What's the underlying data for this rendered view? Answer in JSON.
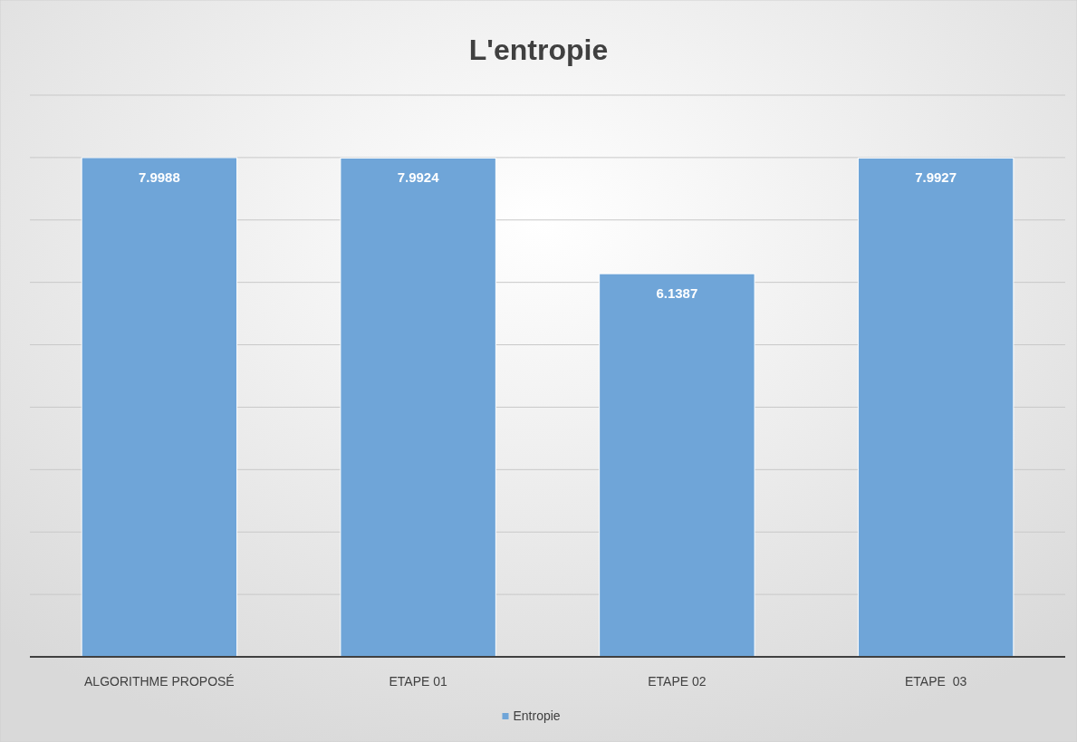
{
  "chart_data": {
    "type": "bar",
    "title": "L'entropie",
    "categories": [
      "ALGORITHME PROPOSÉ",
      "ETAPE 01",
      "ETAPE 02",
      "ETAPE  03"
    ],
    "series": [
      {
        "name": "Entropie",
        "color": "#6fa5d8",
        "values": [
          7.9988,
          7.9924,
          6.1387,
          7.9927
        ]
      }
    ],
    "ylim": [
      0,
      9
    ],
    "yticks": [
      {
        "value": 0,
        "label": null
      },
      {
        "value": 1,
        "label": null
      },
      {
        "value": 2,
        "label": null
      },
      {
        "value": 3,
        "label": null
      },
      {
        "value": 4,
        "label": null
      },
      {
        "value": 5,
        "label": null
      },
      {
        "value": 6,
        "label": null
      },
      {
        "value": 7,
        "label": null
      },
      {
        "value": 8,
        "label": null
      },
      {
        "value": 9,
        "label": null
      }
    ],
    "grid": "y",
    "tick_labels": "x",
    "data_labels": true,
    "legend": "bottom"
  }
}
